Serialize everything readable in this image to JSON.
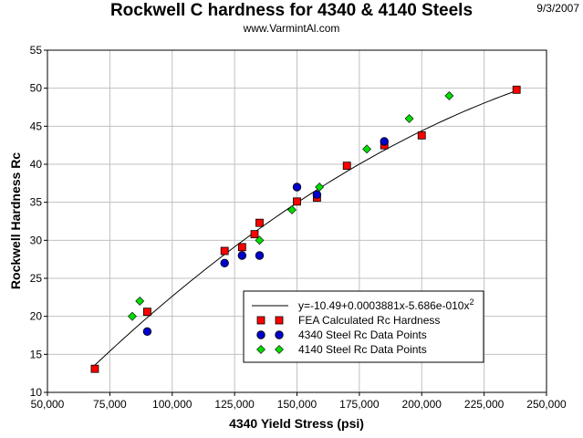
{
  "header": {
    "title": "Rockwell C hardness for 4340 & 4140 Steels",
    "subtitle": "www.VarmintAl.com",
    "date": "9/3/2007"
  },
  "chart_data": {
    "type": "scatter",
    "title": "Rockwell C hardness for 4340 & 4140 Steels",
    "xlabel": "4340 Yield Stress (psi)",
    "ylabel": "Rockwell Hardness Rc",
    "xlim": [
      50000,
      250000
    ],
    "ylim": [
      10,
      55
    ],
    "x_ticks": [
      50000,
      75000,
      100000,
      125000,
      150000,
      175000,
      200000,
      225000,
      250000
    ],
    "x_tick_labels": [
      "50,000",
      "75,000",
      "100,000",
      "125,000",
      "150,000",
      "175,000",
      "200,000",
      "225,000",
      "250,000"
    ],
    "y_ticks": [
      10,
      15,
      20,
      25,
      30,
      35,
      40,
      45,
      50,
      55
    ],
    "y_tick_labels": [
      "10",
      "15",
      "20",
      "25",
      "30",
      "35",
      "40",
      "45",
      "50",
      "55"
    ],
    "grid": true,
    "legend_position": "bottom-right",
    "fit": {
      "label_main": "y=-10.49+0.0003881x-5.686e-010x",
      "label_sup": "2",
      "a": -10.49,
      "b": 0.0003881,
      "c": -5.686e-10,
      "x_range": [
        69000,
        238000
      ],
      "color": "#000000"
    },
    "series": [
      {
        "name": "FEA Calculated Rc Hardness",
        "marker": "square",
        "color": "#ff0000",
        "x": [
          69000,
          90000,
          121000,
          128000,
          133000,
          135000,
          150000,
          158000,
          170000,
          185000,
          200000,
          238000
        ],
        "y": [
          13.1,
          20.6,
          28.6,
          29.1,
          30.8,
          32.3,
          35.1,
          35.6,
          39.8,
          42.5,
          43.8,
          49.8
        ]
      },
      {
        "name": "4340 Steel Rc Data Points",
        "marker": "circle",
        "color": "#0000cc",
        "x": [
          90000,
          121000,
          128000,
          135000,
          150000,
          158000,
          185000
        ],
        "y": [
          18,
          27,
          28,
          28,
          37,
          36,
          43
        ]
      },
      {
        "name": "4140 Steel Rc Data Points",
        "marker": "diamond",
        "color": "#00dd00",
        "x": [
          84000,
          87000,
          135000,
          148000,
          159000,
          178000,
          195000,
          211000
        ],
        "y": [
          20,
          22,
          30,
          34,
          37,
          42,
          46,
          49
        ]
      }
    ]
  }
}
